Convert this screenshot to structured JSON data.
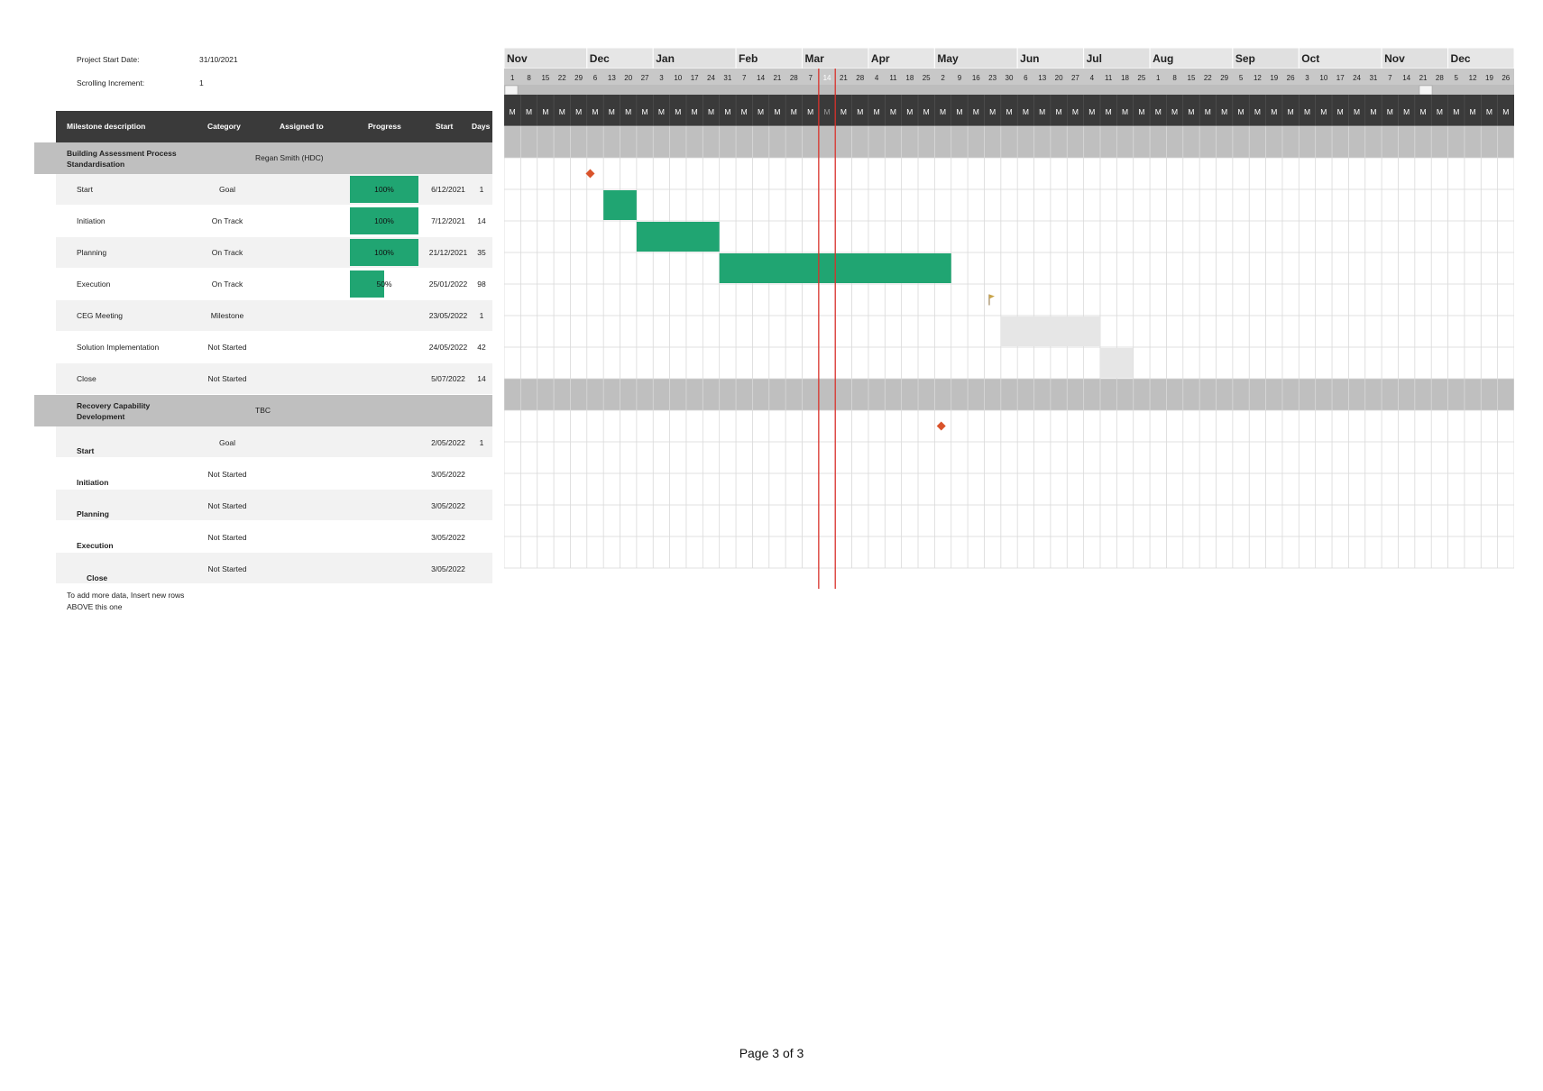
{
  "meta": {
    "project_start_label": "Project Start Date:",
    "project_start_value": "31/10/2021",
    "scroll_increment_label": "Scrolling Increment:",
    "scroll_increment_value": "1"
  },
  "table_headers": {
    "milestone": "Milestone description",
    "category": "Category",
    "assigned": "Assigned to",
    "progress": "Progress",
    "start": "Start",
    "days": "Days"
  },
  "groups": [
    {
      "title_line1": "Building Assessment Process",
      "title_line2": "Standardisation",
      "assigned": "Regan Smith (HDC)",
      "rows": [
        {
          "name": "Start",
          "category": "Goal",
          "progress": "100%",
          "progress_value": 1.0,
          "start": "6/12/2021",
          "days": "1"
        },
        {
          "name": "Initiation",
          "category": "On Track",
          "progress": "100%",
          "progress_value": 1.0,
          "start": "7/12/2021",
          "days": "14"
        },
        {
          "name": "Planning",
          "category": "On Track",
          "progress": "100%",
          "progress_value": 1.0,
          "start": "21/12/2021",
          "days": "35"
        },
        {
          "name": "Execution",
          "category": "On Track",
          "progress": "50%",
          "progress_value": 0.5,
          "start": "25/01/2022",
          "days": "98"
        },
        {
          "name": "CEG Meeting",
          "category": "Milestone",
          "progress": "",
          "progress_value": 0,
          "start": "23/05/2022",
          "days": "1"
        },
        {
          "name": "Solution Implementation",
          "category": "Not Started",
          "progress": "",
          "progress_value": 0,
          "start": "24/05/2022",
          "days": "42"
        },
        {
          "name": "Close",
          "category": "Not Started",
          "progress": "",
          "progress_value": 0,
          "start": "5/07/2022",
          "days": "14"
        }
      ]
    },
    {
      "title_line1": "Recovery Capability",
      "title_line2": "Development",
      "assigned": "TBC",
      "rows": [
        {
          "name": "Start",
          "category": "Goal",
          "progress": "",
          "progress_value": 0,
          "start": "2/05/2022",
          "days": "1"
        },
        {
          "name": "Initiation",
          "category": "Not Started",
          "progress": "",
          "progress_value": 0,
          "start": "3/05/2022",
          "days": ""
        },
        {
          "name": "Planning",
          "category": "Not Started",
          "progress": "",
          "progress_value": 0,
          "start": "3/05/2022",
          "days": ""
        },
        {
          "name": "Execution",
          "category": "Not Started",
          "progress": "",
          "progress_value": 0,
          "start": "3/05/2022",
          "days": ""
        },
        {
          "name": "Close",
          "category": "Not Started",
          "progress": "",
          "progress_value": 0,
          "start": "3/05/2022",
          "days": ""
        }
      ]
    }
  ],
  "footer_note_line1": "To add more data, Insert new rows",
  "footer_note_line2": "ABOVE this one",
  "page_label": "Page 3 of 3",
  "gantt": {
    "months": [
      {
        "label": "Nov",
        "weeks": 5
      },
      {
        "label": "Dec",
        "weeks": 4
      },
      {
        "label": "Jan",
        "weeks": 5
      },
      {
        "label": "Feb",
        "weeks": 4
      },
      {
        "label": "Mar",
        "weeks": 4
      },
      {
        "label": "Apr",
        "weeks": 4
      },
      {
        "label": "May",
        "weeks": 5
      },
      {
        "label": "Jun",
        "weeks": 4
      },
      {
        "label": "Jul",
        "weeks": 4
      },
      {
        "label": "Aug",
        "weeks": 5
      },
      {
        "label": "Sep",
        "weeks": 4
      },
      {
        "label": "Oct",
        "weeks": 5
      },
      {
        "label": "Nov",
        "weeks": 4
      },
      {
        "label": "Dec",
        "weeks": 4
      }
    ],
    "week_days": [
      "1",
      "8",
      "15",
      "22",
      "29",
      "6",
      "13",
      "20",
      "27",
      "3",
      "10",
      "17",
      "24",
      "31",
      "7",
      "14",
      "21",
      "28",
      "7",
      "14",
      "21",
      "28",
      "4",
      "11",
      "18",
      "25",
      "2",
      "9",
      "16",
      "23",
      "30",
      "6",
      "13",
      "20",
      "27",
      "4",
      "11",
      "18",
      "25",
      "1",
      "8",
      "15",
      "22",
      "29",
      "5",
      "12",
      "19",
      "26",
      "3",
      "10",
      "17",
      "24",
      "31",
      "7",
      "14",
      "21",
      "28",
      "5",
      "12",
      "19",
      "26"
    ],
    "day_letter": "M",
    "today_week_index": 19,
    "colors": {
      "bar_done": "#20a572",
      "bar_future": "#e6e6e6",
      "today_line": "#d9312b",
      "diamond": "#d9532b",
      "month_bg": "#e0e0e0",
      "header_bg": "#c8c8c8",
      "group_bg": "#bfbfbf"
    },
    "items": [
      {
        "row": 1,
        "type": "diamond",
        "start_week": 5.2
      },
      {
        "row": 2,
        "type": "bar",
        "start_week": 6,
        "end_week": 8,
        "status": "done"
      },
      {
        "row": 3,
        "type": "bar",
        "start_week": 8,
        "end_week": 13,
        "status": "done"
      },
      {
        "row": 4,
        "type": "bar",
        "start_week": 13,
        "end_week": 27,
        "status": "done"
      },
      {
        "row": 5,
        "type": "flag",
        "start_week": 29.3
      },
      {
        "row": 6,
        "type": "bar",
        "start_week": 30,
        "end_week": 36,
        "status": "future"
      },
      {
        "row": 7,
        "type": "bar",
        "start_week": 36,
        "end_week": 38,
        "status": "future"
      },
      {
        "row": 9,
        "type": "diamond",
        "start_week": 26.4
      }
    ]
  }
}
